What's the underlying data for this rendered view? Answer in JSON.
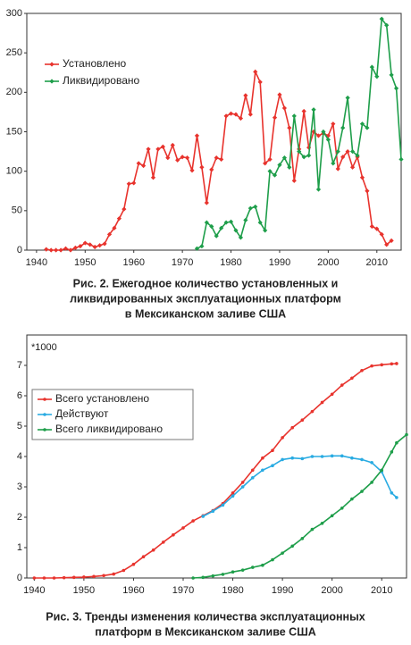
{
  "chart_data": [
    {
      "type": "line",
      "caption": [
        "Рис. 2. Ежегодное количество установленных и",
        "ликвидированных эксплуатационных платформ",
        "в Мексиканском заливе США"
      ],
      "x": [
        1942,
        1943,
        1944,
        1945,
        1946,
        1947,
        1948,
        1949,
        1950,
        1951,
        1952,
        1953,
        1954,
        1955,
        1956,
        1957,
        1958,
        1959,
        1960,
        1961,
        1962,
        1963,
        1964,
        1965,
        1966,
        1967,
        1968,
        1969,
        1970,
        1971,
        1972,
        1973,
        1974,
        1975,
        1976,
        1977,
        1978,
        1979,
        1980,
        1981,
        1982,
        1983,
        1984,
        1985,
        1986,
        1987,
        1988,
        1989,
        1990,
        1991,
        1992,
        1993,
        1994,
        1995,
        1996,
        1997,
        1998,
        1999,
        2000,
        2001,
        2002,
        2003,
        2004,
        2005,
        2006,
        2007,
        2008,
        2009,
        2010,
        2011,
        2012,
        2013,
        2014,
        2015
      ],
      "series": [
        {
          "name": "Установлено",
          "color": "#e8332d",
          "values": [
            1,
            0,
            0,
            0,
            2,
            0,
            3,
            5,
            9,
            7,
            4,
            6,
            8,
            20,
            28,
            40,
            52,
            84,
            85,
            110,
            107,
            128,
            92,
            128,
            131,
            117,
            133,
            114,
            118,
            117,
            101,
            145,
            105,
            60,
            102,
            117,
            115,
            170,
            173,
            172,
            167,
            196,
            172,
            226,
            213,
            110,
            115,
            168,
            197,
            180,
            155,
            88,
            128,
            176,
            130,
            150,
            145,
            148,
            145,
            160,
            103,
            118,
            125,
            105,
            118,
            92,
            75,
            30,
            27,
            20,
            7,
            12,
            null,
            null
          ]
        },
        {
          "name": "Ликвидировано",
          "color": "#1e9e4a",
          "values": [
            null,
            null,
            null,
            null,
            null,
            null,
            null,
            null,
            null,
            null,
            null,
            null,
            null,
            null,
            null,
            null,
            null,
            null,
            null,
            null,
            null,
            null,
            null,
            null,
            null,
            null,
            null,
            null,
            null,
            null,
            null,
            2,
            5,
            35,
            30,
            18,
            28,
            35,
            36,
            25,
            16,
            38,
            53,
            55,
            35,
            25,
            100,
            95,
            108,
            117,
            105,
            170,
            125,
            118,
            120,
            178,
            77,
            150,
            140,
            110,
            125,
            155,
            193,
            125,
            120,
            160,
            155,
            232,
            220,
            293,
            285,
            222,
            205,
            115
          ]
        }
      ],
      "marker": "diamond",
      "xlim": [
        1938,
        2015
      ],
      "xticks": [
        1940,
        1950,
        1960,
        1970,
        1980,
        1990,
        2000,
        2010
      ],
      "ylim": [
        0,
        300
      ],
      "yticks": [
        0,
        50,
        100,
        150,
        200,
        250,
        300
      ],
      "grid": false,
      "legend": "upper-left"
    },
    {
      "type": "line",
      "caption": [
        "Рис. 3. Тренды изменения количества эксплуатационных",
        "платформ  в Мексиканском заливе США"
      ],
      "annotation": "*1000",
      "x": [
        1940,
        1942,
        1944,
        1946,
        1948,
        1950,
        1952,
        1954,
        1956,
        1958,
        1960,
        1962,
        1964,
        1966,
        1968,
        1970,
        1972,
        1974,
        1976,
        1978,
        1980,
        1982,
        1984,
        1986,
        1988,
        1990,
        1992,
        1994,
        1996,
        1998,
        2000,
        2002,
        2004,
        2006,
        2008,
        2010,
        2012,
        2013,
        2015
      ],
      "series": [
        {
          "name": "Всего установлено",
          "color": "#e8332d",
          "values": [
            0,
            0,
            0,
            0.01,
            0.02,
            0.03,
            0.05,
            0.08,
            0.13,
            0.25,
            0.45,
            0.7,
            0.92,
            1.18,
            1.42,
            1.65,
            1.88,
            2.05,
            2.22,
            2.45,
            2.8,
            3.15,
            3.55,
            3.95,
            4.2,
            4.62,
            4.95,
            5.2,
            5.48,
            5.78,
            6.05,
            6.35,
            6.58,
            6.83,
            6.98,
            7.02,
            7.05,
            7.06,
            null
          ]
        },
        {
          "name": "Действуют",
          "color": "#29abe2",
          "values": [
            null,
            null,
            null,
            null,
            null,
            null,
            null,
            null,
            null,
            null,
            null,
            null,
            null,
            null,
            null,
            null,
            null,
            2.03,
            2.2,
            2.4,
            2.7,
            3.0,
            3.3,
            3.55,
            3.7,
            3.9,
            3.95,
            3.93,
            4.0,
            4.0,
            4.02,
            4.02,
            3.95,
            3.9,
            3.8,
            3.5,
            2.8,
            2.65,
            null
          ]
        },
        {
          "name": "Всего ликвидировано",
          "color": "#1e9e4a",
          "values": [
            null,
            null,
            null,
            null,
            null,
            null,
            null,
            null,
            null,
            null,
            null,
            null,
            null,
            null,
            null,
            null,
            0,
            0.02,
            0.07,
            0.12,
            0.2,
            0.26,
            0.35,
            0.42,
            0.6,
            0.82,
            1.05,
            1.3,
            1.6,
            1.8,
            2.05,
            2.3,
            2.6,
            2.85,
            3.15,
            3.55,
            4.15,
            4.45,
            4.72
          ]
        }
      ],
      "marker": "circle",
      "xlim": [
        1938.5,
        2015
      ],
      "xticks": [
        1940,
        1950,
        1960,
        1970,
        1980,
        1990,
        2000,
        2010
      ],
      "ylim": [
        0,
        8
      ],
      "yticks": [
        0,
        1,
        2,
        3,
        4,
        5,
        6,
        7
      ],
      "grid": false,
      "legend": "upper-left",
      "legend_box": true
    }
  ]
}
